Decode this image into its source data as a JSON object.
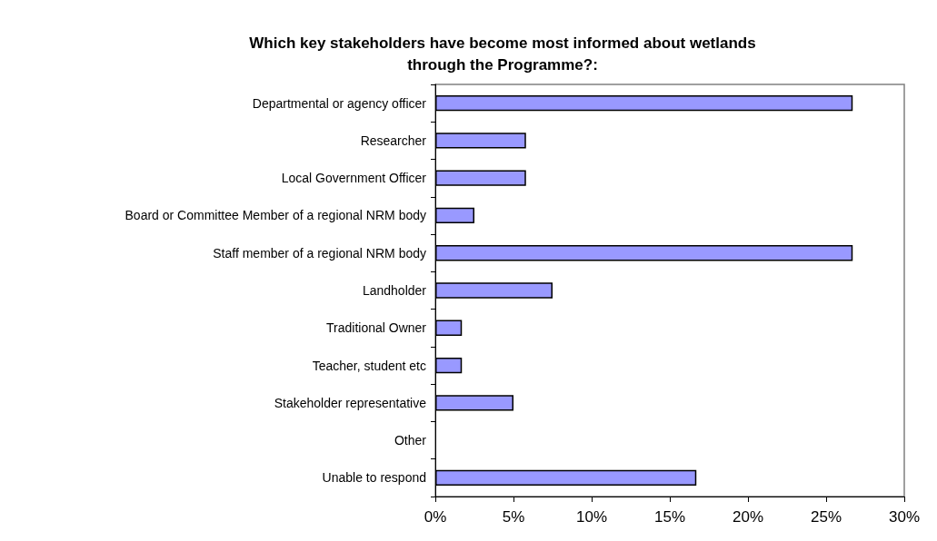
{
  "chart_data": {
    "type": "bar",
    "orientation": "horizontal",
    "title": "Which key stakeholders have become most informed about wetlands\nthrough the Programme?:",
    "categories": [
      "Departmental or agency officer",
      "Researcher",
      "Local Government Officer",
      "Board or Committee Member of a regional NRM body",
      "Staff member of a regional NRM body",
      "Landholder",
      "Traditional Owner",
      "Teacher, student etc",
      "Stakeholder representative",
      "Other",
      "Unable to respond"
    ],
    "values": [
      26.7,
      5.8,
      5.8,
      2.5,
      26.7,
      7.5,
      1.7,
      1.7,
      5.0,
      0,
      16.7
    ],
    "color": "#9999ff",
    "xlim": [
      0,
      30
    ],
    "xticks": [
      {
        "value": 0,
        "label": "0%"
      },
      {
        "value": 5,
        "label": "5%"
      },
      {
        "value": 10,
        "label": "10%"
      },
      {
        "value": 15,
        "label": "15%"
      },
      {
        "value": 20,
        "label": "20%"
      },
      {
        "value": 25,
        "label": "25%"
      },
      {
        "value": 30,
        "label": "30%"
      }
    ],
    "grid": false
  }
}
